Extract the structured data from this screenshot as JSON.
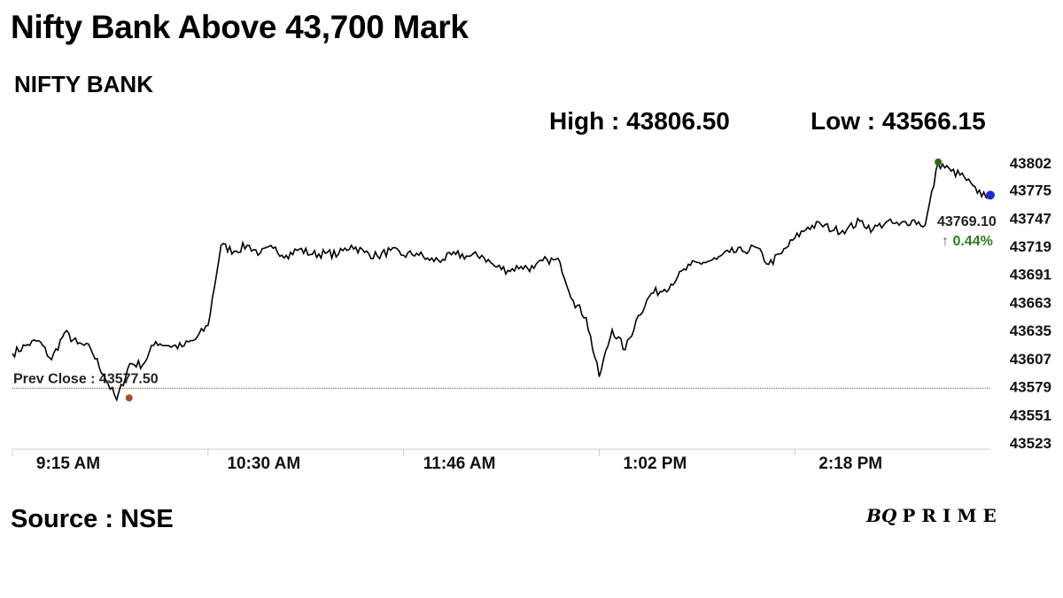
{
  "header": {
    "title": "Nifty Bank Above 43,700 Mark",
    "subtitle": "NIFTY BANK",
    "high_text": "High : 43806.50",
    "low_text": "Low : 43566.15"
  },
  "footer": {
    "source": "Source : NSE",
    "brand_bq": "BQ",
    "brand_rest": "PRIME"
  },
  "chart_data": {
    "type": "line",
    "title": "Nifty Bank Above 43,700 Mark",
    "subtitle": "NIFTY BANK",
    "x_ticks": [
      "9:15 AM",
      "10:30 AM",
      "11:46 AM",
      "1:02 PM",
      "2:18 PM"
    ],
    "y_ticks": [
      43523,
      43551,
      43579,
      43607,
      43635,
      43663,
      43691,
      43719,
      43747,
      43775,
      43802
    ],
    "ylim": [
      43523,
      43802
    ],
    "prev_close": 43577.5,
    "prev_close_text": "Prev Close : 43577.50",
    "last_value_text": "43769.10",
    "change_text": "↑ 0.44%",
    "high": 43806.5,
    "low": 43566.15,
    "colors": {
      "line": "#000000",
      "prev_close": "#8b4513",
      "high_marker": "#2e6b12",
      "low_marker": "#a0522d",
      "last_marker": "#1f2ad6",
      "change": "#2e7d1e"
    },
    "series": [
      {
        "x": [
          "9:15",
          "9:20",
          "9:25",
          "9:30",
          "9:35",
          "9:40",
          "9:45",
          "9:50",
          "9:55",
          "10:00",
          "10:05",
          "10:10",
          "10:15",
          "10:20",
          "10:25",
          "10:30",
          "10:35",
          "10:40",
          "10:45",
          "10:50",
          "10:55",
          "11:00",
          "11:05",
          "11:10",
          "11:15",
          "11:20",
          "11:25",
          "11:30",
          "11:35",
          "11:40",
          "11:46",
          "11:50",
          "11:55",
          "12:00",
          "12:05",
          "12:10",
          "12:15",
          "12:20",
          "12:25",
          "12:30",
          "12:35",
          "12:40",
          "12:45",
          "12:50",
          "12:55",
          "1:02",
          "1:05",
          "1:10",
          "1:15",
          "1:20",
          "1:25",
          "1:30",
          "1:35",
          "1:40",
          "1:45",
          "1:50",
          "1:55",
          "2:00",
          "2:05",
          "2:10",
          "2:18",
          "2:20",
          "2:25",
          "2:30",
          "2:35",
          "2:40",
          "2:45",
          "2:50",
          "2:55",
          "3:00",
          "3:05",
          "3:10",
          "3:15",
          "3:20",
          "3:25",
          "3:30"
        ],
        "values": [
          43612,
          43620,
          43625,
          43606,
          43633,
          43622,
          43617,
          43591,
          43566,
          43602,
          43601,
          43624,
          43620,
          43619,
          43626,
          43640,
          43720,
          43714,
          43720,
          43712,
          43717,
          43710,
          43716,
          43711,
          43712,
          43711,
          43720,
          43713,
          43709,
          43715,
          43710,
          43712,
          43705,
          43706,
          43711,
          43709,
          43710,
          43699,
          43695,
          43699,
          43697,
          43706,
          43703,
          43665,
          43648,
          43589,
          43636,
          43616,
          43650,
          43672,
          43676,
          43688,
          43700,
          43703,
          43706,
          43713,
          43714,
          43718,
          43701,
          43712,
          43727,
          43738,
          43741,
          43735,
          43736,
          43744,
          43736,
          43743,
          43740,
          43745,
          43740,
          43802,
          43794,
          43788,
          43772,
          43770
        ]
      }
    ]
  }
}
